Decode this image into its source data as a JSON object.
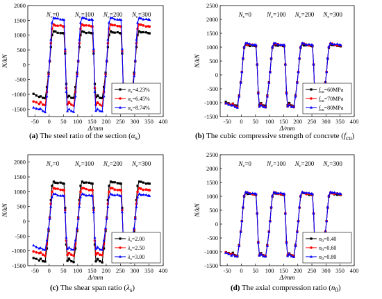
{
  "captions": [
    {
      "letter": "(a)",
      "text": "The steel ratio of the section (",
      "sym": "α",
      "sub": "s",
      "close": ")"
    },
    {
      "letter": "(b)",
      "text": "The cubic compressive strength of concrete (",
      "sym": "f",
      "sub": "cu",
      "close": ")"
    },
    {
      "letter": "(c)",
      "text": "The shear span ratio (",
      "sym": "λ",
      "sub": "s",
      "close": ")"
    },
    {
      "letter": "(d)",
      "text": "The axial compression ratio (",
      "sym": "n",
      "sub": "0",
      "close": ")"
    }
  ],
  "chart_data": [
    {
      "type": "line",
      "xlabel": "Δ/mm",
      "ylabel": "N/kN",
      "xlim": [
        -75,
        400
      ],
      "ylim": [
        -1750,
        2000
      ],
      "xticks": [
        -50,
        0,
        50,
        100,
        150,
        200,
        250,
        300,
        350,
        400
      ],
      "yticks": [
        -1500,
        -1000,
        -500,
        0,
        500,
        1000,
        1500,
        2000
      ],
      "legend_position": "bottom-right",
      "nc_labels": [
        "N_c=0",
        "N_c=100",
        "N_c=200",
        "N_c=300"
      ],
      "nc_label_x": [
        0,
        100,
        200,
        300
      ],
      "series": [
        {
          "name": "α_s=4.23%",
          "color": "#000000",
          "marker": "square",
          "peak_pos": 1090,
          "peak_neg": -1080
        },
        {
          "name": "α_s=6.45%",
          "color": "#ff0000",
          "marker": "circle",
          "peak_pos": 1320,
          "peak_neg": -1310
        },
        {
          "name": "α_s=8.74%",
          "color": "#0000ff",
          "marker": "triangle",
          "peak_pos": 1550,
          "peak_neg": -1520
        }
      ]
    },
    {
      "type": "line",
      "xlabel": "Δ/mm",
      "ylabel": "N/kN",
      "xlim": [
        -75,
        400
      ],
      "ylim": [
        -1500,
        2500
      ],
      "xticks": [
        -50,
        0,
        50,
        100,
        150,
        200,
        250,
        300,
        350,
        400
      ],
      "yticks": [
        -1500,
        -1000,
        -500,
        0,
        500,
        1000,
        1500,
        2000,
        2500
      ],
      "legend_position": "bottom-right",
      "nc_labels": [
        "N_c=0",
        "N_c=100",
        "N_c=200",
        "N_c=300"
      ],
      "nc_label_x": [
        0,
        100,
        200,
        300
      ],
      "series": [
        {
          "name": "f_cu=60MPa",
          "color": "#000000",
          "marker": "square",
          "peak_pos": 1060,
          "peak_neg": -1060
        },
        {
          "name": "f_cu=70MPa",
          "color": "#ff0000",
          "marker": "circle",
          "peak_pos": 1090,
          "peak_neg": -1090
        },
        {
          "name": "f_cu=80MPa",
          "color": "#0000ff",
          "marker": "triangle",
          "peak_pos": 1110,
          "peak_neg": -1110
        }
      ]
    },
    {
      "type": "line",
      "xlabel": "Δ/mm",
      "ylabel": "N/kN",
      "xlim": [
        -75,
        400
      ],
      "ylim": [
        -1500,
        2250
      ],
      "xticks": [
        -50,
        0,
        50,
        100,
        150,
        200,
        250,
        300,
        350,
        400
      ],
      "yticks": [
        -1500,
        -1000,
        -500,
        0,
        500,
        1000,
        1500,
        2000
      ],
      "legend_position": "bottom-right",
      "nc_labels": [
        "N_c=0",
        "N_c=100",
        "N_c=200",
        "N_c=300"
      ],
      "nc_label_x": [
        0,
        100,
        200,
        300
      ],
      "series": [
        {
          "name": "λ_s=2.00",
          "color": "#000000",
          "marker": "square",
          "peak_pos": 1300,
          "peak_neg": -1310
        },
        {
          "name": "λ_s=2.50",
          "color": "#ff0000",
          "marker": "circle",
          "peak_pos": 1080,
          "peak_neg": -1090
        },
        {
          "name": "λ_s=3.00",
          "color": "#0000ff",
          "marker": "triangle",
          "peak_pos": 890,
          "peak_neg": -910
        }
      ]
    },
    {
      "type": "line",
      "xlabel": "Δ/mm",
      "ylabel": "N/kN",
      "xlim": [
        -75,
        400
      ],
      "ylim": [
        -1500,
        2500
      ],
      "xticks": [
        -50,
        0,
        50,
        100,
        150,
        200,
        250,
        300,
        350,
        400
      ],
      "yticks": [
        -1500,
        -1000,
        -500,
        0,
        500,
        1000,
        1500,
        2000,
        2500
      ],
      "legend_position": "bottom-right",
      "nc_labels": [
        "N_c=0",
        "N_c=100",
        "N_c=200",
        "N_c=300"
      ],
      "nc_label_x": [
        0,
        100,
        200,
        300
      ],
      "series": [
        {
          "name": "n_0=0.40",
          "color": "#000000",
          "marker": "square",
          "peak_pos": 1080,
          "peak_neg": -1080
        },
        {
          "name": "n_0=0.60",
          "color": "#ff0000",
          "marker": "circle",
          "peak_pos": 1100,
          "peak_neg": -1100
        },
        {
          "name": "n_0=0.80",
          "color": "#0000ff",
          "marker": "triangle",
          "peak_pos": 1120,
          "peak_neg": -1120
        }
      ]
    }
  ]
}
